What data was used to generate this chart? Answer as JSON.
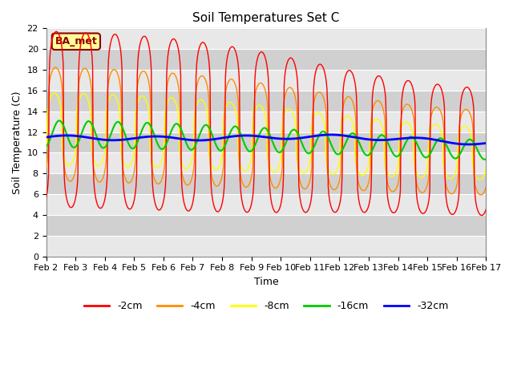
{
  "title": "Soil Temperatures Set C",
  "xlabel": "Time",
  "ylabel": "Soil Temperature (C)",
  "ylim": [
    0,
    22
  ],
  "yticks": [
    0,
    2,
    4,
    6,
    8,
    10,
    12,
    14,
    16,
    18,
    20,
    22
  ],
  "x_labels": [
    "Feb 2",
    "Feb 3",
    "Feb 4",
    "Feb 5",
    "Feb 6",
    "Feb 7",
    "Feb 8",
    "Feb 9",
    "Feb 10",
    "Feb 11",
    "Feb 12",
    "Feb 13",
    "Feb 14",
    "Feb 15",
    "Feb 16",
    "Feb 17"
  ],
  "colors": {
    "-2cm": "#ff0000",
    "-4cm": "#ff8c00",
    "-8cm": "#ffff00",
    "-16cm": "#00cc00",
    "-32cm": "#0000ff"
  },
  "legend_labels": [
    "-2cm",
    "-4cm",
    "-8cm",
    "-16cm",
    "-32cm"
  ],
  "annotation_text": "BA_met",
  "annotation_color": "#8b0000",
  "fig_bg_color": "#ffffff",
  "plot_bg_color_light": "#e8e8e8",
  "plot_bg_color_dark": "#d0d0d0",
  "title_fontsize": 11,
  "axis_label_fontsize": 9,
  "tick_fontsize": 8
}
